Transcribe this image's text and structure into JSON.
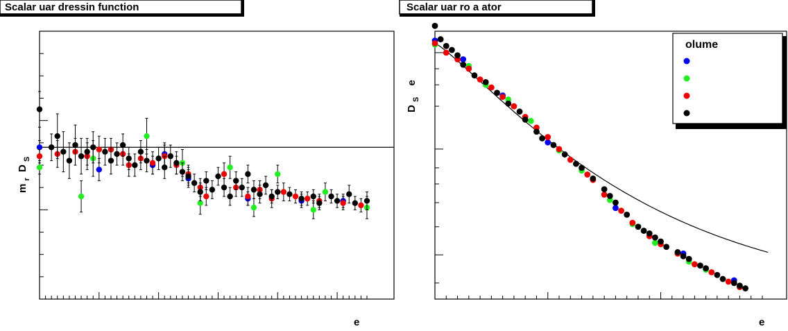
{
  "colors": {
    "blue": "#0000ee",
    "green": "#22ee22",
    "red": "#ee0000",
    "black": "#000000"
  },
  "chart_data": [
    {
      "type": "scatter",
      "title": "Scalar uar dressin function",
      "xlabel": "e",
      "ylabel": "m r D S",
      "xlim": [
        0,
        55
      ],
      "ylim": [
        0,
        12
      ],
      "grid": false,
      "reference_line": 6.8,
      "series": [
        {
          "color": "blue",
          "points": [
            [
              0,
              6.8,
              0.3
            ],
            [
              10,
              5.8,
              0.5
            ],
            [
              19,
              6.0,
              0.4
            ],
            [
              21,
              6.5,
              0.5
            ],
            [
              25,
              5.4,
              0.4
            ],
            [
              35,
              4.5,
              0.3
            ],
            [
              44,
              4.4,
              0.3
            ],
            [
              51,
              4.4,
              0.3
            ]
          ]
        },
        {
          "color": "green",
          "points": [
            [
              0,
              5.9,
              0.3
            ],
            [
              7,
              4.6,
              0.7
            ],
            [
              9,
              6.3,
              0.8
            ],
            [
              18,
              7.3,
              0.8
            ],
            [
              24,
              6.1,
              0.6
            ],
            [
              27,
              4.3,
              0.5
            ],
            [
              32,
              5.9,
              0.5
            ],
            [
              36,
              4.1,
              0.4
            ],
            [
              40,
              5.6,
              0.4
            ],
            [
              46,
              4.0,
              0.4
            ],
            [
              48,
              4.8,
              0.4
            ],
            [
              55,
              4.1,
              0.5
            ]
          ]
        },
        {
          "color": "red",
          "points": [
            [
              0,
              6.4,
              0.3
            ],
            [
              3,
              6.5,
              0.6
            ],
            [
              6,
              6.6,
              0.6
            ],
            [
              8,
              6.4,
              0.6
            ],
            [
              10,
              6.7,
              0.6
            ],
            [
              12,
              6.7,
              0.5
            ],
            [
              14,
              6.5,
              0.5
            ],
            [
              15,
              6.0,
              0.5
            ],
            [
              17,
              6.3,
              0.5
            ],
            [
              19,
              6.1,
              0.5
            ],
            [
              21,
              6.4,
              0.5
            ],
            [
              23,
              6.0,
              0.4
            ],
            [
              25,
              5.6,
              0.4
            ],
            [
              27,
              5.0,
              0.4
            ],
            [
              28,
              4.6,
              0.4
            ],
            [
              31,
              5.6,
              0.5
            ],
            [
              33,
              5.0,
              0.4
            ],
            [
              35,
              4.6,
              0.4
            ],
            [
              37,
              4.9,
              0.4
            ],
            [
              39,
              4.5,
              0.4
            ],
            [
              41,
              4.8,
              0.4
            ],
            [
              43,
              4.6,
              0.3
            ],
            [
              45,
              4.5,
              0.3
            ],
            [
              47,
              4.4,
              0.3
            ],
            [
              51,
              4.3,
              0.3
            ],
            [
              54,
              4.2,
              0.3
            ]
          ]
        },
        {
          "color": "black",
          "points": [
            [
              0,
              8.5,
              0.8
            ],
            [
              2,
              6.8,
              0.6
            ],
            [
              3,
              7.3,
              1.0
            ],
            [
              4,
              6.6,
              0.9
            ],
            [
              5,
              6.2,
              0.8
            ],
            [
              6,
              6.9,
              0.9
            ],
            [
              7,
              6.4,
              0.8
            ],
            [
              8,
              6.6,
              0.6
            ],
            [
              9,
              6.8,
              0.7
            ],
            [
              11,
              6.6,
              0.6
            ],
            [
              12,
              6.2,
              0.6
            ],
            [
              13,
              6.5,
              0.5
            ],
            [
              14,
              6.9,
              0.5
            ],
            [
              15,
              6.3,
              0.5
            ],
            [
              16,
              6.0,
              0.5
            ],
            [
              17,
              6.6,
              0.5
            ],
            [
              18,
              6.2,
              0.5
            ],
            [
              20,
              6.3,
              0.5
            ],
            [
              21,
              5.9,
              0.5
            ],
            [
              22,
              6.4,
              0.5
            ],
            [
              23,
              6.1,
              0.5
            ],
            [
              24,
              5.7,
              0.4
            ],
            [
              25,
              5.5,
              0.4
            ],
            [
              26,
              5.2,
              0.4
            ],
            [
              27,
              4.8,
              0.4
            ],
            [
              28,
              5.3,
              0.4
            ],
            [
              29,
              4.9,
              0.4
            ],
            [
              30,
              5.5,
              0.4
            ],
            [
              31,
              5.0,
              0.4
            ],
            [
              32,
              4.6,
              0.4
            ],
            [
              33,
              5.3,
              0.4
            ],
            [
              34,
              5.0,
              0.4
            ],
            [
              35,
              5.6,
              0.4
            ],
            [
              36,
              4.9,
              0.4
            ],
            [
              37,
              4.7,
              0.4
            ],
            [
              38,
              5.1,
              0.4
            ],
            [
              39,
              4.6,
              0.3
            ],
            [
              40,
              4.8,
              0.3
            ],
            [
              42,
              4.7,
              0.3
            ],
            [
              44,
              4.5,
              0.3
            ],
            [
              46,
              4.6,
              0.3
            ],
            [
              47,
              4.3,
              0.3
            ],
            [
              49,
              4.6,
              0.3
            ],
            [
              50,
              4.4,
              0.3
            ],
            [
              52,
              4.7,
              0.4
            ],
            [
              53,
              4.3,
              0.3
            ],
            [
              55,
              4.4,
              0.4
            ]
          ]
        }
      ]
    },
    {
      "type": "scatter",
      "title": "Scalar uar ro a ator",
      "xlabel": "e",
      "ylabel": "D S e",
      "xlim": [
        0,
        58
      ],
      "ylim": [
        0,
        1
      ],
      "log_y": true,
      "grid": false,
      "legend": {
        "title": "olume",
        "entries": [
          "",
          "",
          "",
          ""
        ],
        "colors": [
          "blue",
          "green",
          "red",
          "black"
        ],
        "position": "top-right"
      },
      "fit_curve": true,
      "series": [
        {
          "color": "blue",
          "points": [
            [
              0,
              0.965
            ],
            [
              5,
              0.895
            ],
            [
              12,
              0.76
            ],
            [
              20,
              0.585
            ],
            [
              32,
              0.34
            ],
            [
              44,
              0.17
            ],
            [
              53,
              0.07
            ]
          ]
        },
        {
          "color": "green",
          "points": [
            [
              0,
              0.95
            ],
            [
              6,
              0.87
            ],
            [
              9,
              0.8
            ],
            [
              13,
              0.745
            ],
            [
              17,
              0.665
            ],
            [
              22,
              0.555
            ],
            [
              26,
              0.48
            ],
            [
              31,
              0.37
            ],
            [
              35,
              0.28
            ],
            [
              39,
              0.21
            ],
            [
              45,
              0.14
            ],
            [
              48,
              0.11
            ],
            [
              54,
              0.045
            ]
          ]
        },
        {
          "color": "red",
          "points": [
            [
              0,
              0.955
            ],
            [
              2,
              0.92
            ],
            [
              4,
              0.895
            ],
            [
              6,
              0.86
            ],
            [
              8,
              0.82
            ],
            [
              10,
              0.79
            ],
            [
              12,
              0.755
            ],
            [
              14,
              0.72
            ],
            [
              16,
              0.68
            ],
            [
              18,
              0.64
            ],
            [
              20,
              0.605
            ],
            [
              22,
              0.56
            ],
            [
              24,
              0.52
            ],
            [
              27,
              0.465
            ],
            [
              28,
              0.445
            ],
            [
              30,
              0.39
            ],
            [
              33,
              0.33
            ],
            [
              35,
              0.285
            ],
            [
              38,
              0.235
            ],
            [
              40,
              0.205
            ],
            [
              43,
              0.17
            ],
            [
              46,
              0.13
            ],
            [
              49,
              0.1
            ],
            [
              52,
              0.065
            ],
            [
              54,
              0.045
            ]
          ]
        },
        {
          "color": "black",
          "points": [
            [
              0,
              1.02
            ],
            [
              1,
              0.97
            ],
            [
              2,
              0.945
            ],
            [
              3,
              0.93
            ],
            [
              4,
              0.91
            ],
            [
              5,
              0.875
            ],
            [
              7,
              0.835
            ],
            [
              9,
              0.81
            ],
            [
              11,
              0.77
            ],
            [
              13,
              0.73
            ],
            [
              15,
              0.7
            ],
            [
              16,
              0.67
            ],
            [
              18,
              0.625
            ],
            [
              19,
              0.6
            ],
            [
              21,
              0.575
            ],
            [
              23,
              0.54
            ],
            [
              25,
              0.505
            ],
            [
              26,
              0.49
            ],
            [
              28,
              0.45
            ],
            [
              30,
              0.41
            ],
            [
              31,
              0.385
            ],
            [
              32,
              0.36
            ],
            [
              34,
              0.315
            ],
            [
              36,
              0.27
            ],
            [
              37,
              0.255
            ],
            [
              38,
              0.245
            ],
            [
              39,
              0.23
            ],
            [
              40,
              0.215
            ],
            [
              41,
              0.195
            ],
            [
              43,
              0.175
            ],
            [
              44,
              0.16
            ],
            [
              45,
              0.15
            ],
            [
              47,
              0.125
            ],
            [
              48,
              0.115
            ],
            [
              50,
              0.09
            ],
            [
              51,
              0.075
            ],
            [
              53,
              0.06
            ],
            [
              54,
              0.05
            ],
            [
              55,
              0.04
            ]
          ]
        }
      ]
    }
  ]
}
